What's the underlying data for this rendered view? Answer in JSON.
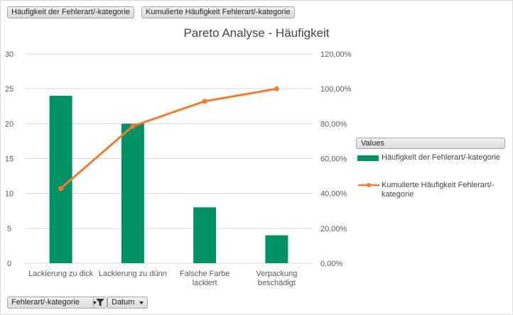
{
  "field_buttons": {
    "values_1": "Häufigkeit der Fehlerart/-kategorie",
    "values_2": "Kumulierte Häufigkeit Fehlerart/-kategorie",
    "axis_field": "Fehlerart/-kategorie",
    "filter_field": "Datum"
  },
  "legend": {
    "header": "Values",
    "bar_label": "Häufigkeit der Fehlerart/-kategorie",
    "line_label": "Kumulierte Häufigkeit Fehlerart/-kategorie"
  },
  "colors": {
    "bar": "#009065",
    "line": "#ed7d31",
    "grid": "#d9d9d9",
    "text": "#595959"
  },
  "icons": {
    "filter": "filter-funnel-icon",
    "dropdown": "chevron-down-icon"
  },
  "chart_data": {
    "type": "bar",
    "title": "Pareto Analyse - Häufigkeit",
    "categories": [
      "Lackierung zu dick",
      "Lackierung zu dünn",
      "Falsche Farbe lackiert",
      "Verpackung beschädigt"
    ],
    "series": [
      {
        "name": "Häufigkeit der Fehlerart/-kategorie",
        "type": "bar",
        "axis": "left",
        "values": [
          24,
          20,
          8,
          4
        ]
      },
      {
        "name": "Kumulierte Häufigkeit Fehlerart/-kategorie",
        "type": "line",
        "axis": "right",
        "values": [
          0.4286,
          0.7857,
          0.9286,
          1.0
        ]
      }
    ],
    "y_left": {
      "ylim": [
        0,
        30
      ],
      "ticks": [
        "0",
        "5",
        "10",
        "15",
        "20",
        "25",
        "30"
      ]
    },
    "y_right": {
      "ylim": [
        0,
        1.2
      ],
      "ticks": [
        "0,00%",
        "20,00%",
        "40,00%",
        "60,00%",
        "80,00%",
        "100,00%",
        "120,00%"
      ]
    },
    "grid": true,
    "legend_position": "right"
  }
}
